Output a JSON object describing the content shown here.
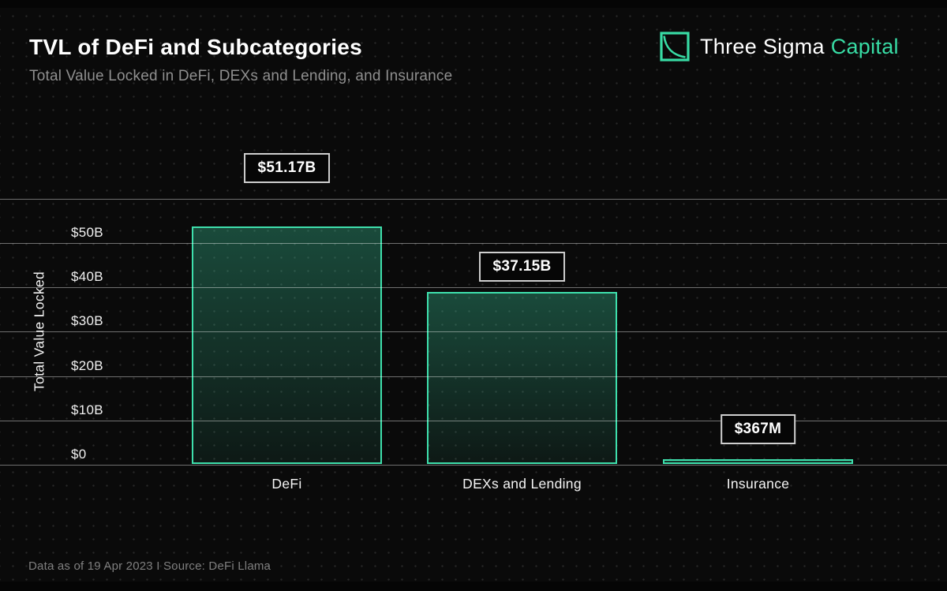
{
  "header": {
    "title": "TVL of DeFi and Subcategories",
    "subtitle": "Total Value Locked in DeFi, DEXs and Lending, and Insurance"
  },
  "brand": {
    "name_primary": "Three Sigma",
    "name_accent": "Capital",
    "logo_icon": "decay-curve-square-icon",
    "accent_color": "#38DCA5"
  },
  "chart_data": {
    "type": "bar",
    "title": "TVL of DeFi and Subcategories",
    "subtitle": "Total Value Locked in DeFi, DEXs and Lending, and Insurance",
    "categories": [
      "DeFi",
      "DEXs and Lending",
      "Insurance"
    ],
    "values_billions": [
      51.17,
      37.15,
      0.367
    ],
    "value_labels": [
      "$51.17B",
      "$37.15B",
      "$367M"
    ],
    "ylabel": "Total Value Locked",
    "xlabel": "",
    "y_ticks": [
      "$0",
      "$10B",
      "$20B",
      "$30B",
      "$40B",
      "$50B"
    ],
    "y_tick_values_billions": [
      0,
      10,
      20,
      30,
      40,
      50
    ],
    "ylim_billions": [
      0,
      60
    ],
    "grid": true,
    "legend": "none",
    "colors": {
      "background": "#0a0a0a",
      "bar_border": "#3EDFAC",
      "bar_fill_top": "rgba(62,223,172,0.30)",
      "bar_fill_bottom": "rgba(62,223,172,0.07)",
      "gridline": "rgba(255,255,255,0.42)",
      "callout_border": "#cfcfcf",
      "callout_background": "#060606"
    }
  },
  "footer": {
    "text": "Data as of 19 Apr 2023 I Source: DeFi Llama"
  }
}
